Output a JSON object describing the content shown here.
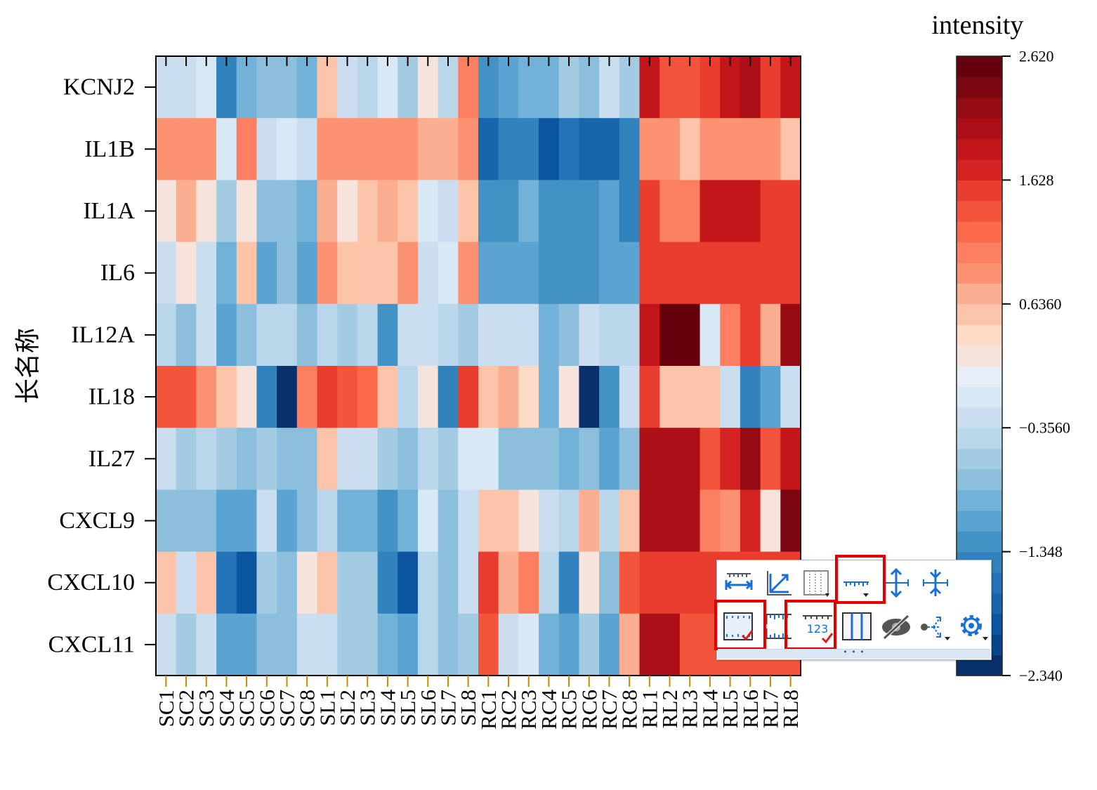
{
  "chart_data": {
    "type": "heatmap",
    "ylabel": "长名称",
    "rows": [
      "KCNJ2",
      "IL1B",
      "IL1A",
      "IL6",
      "IL12A",
      "IL18",
      "IL27",
      "CXCL9",
      "CXCL10",
      "CXCL11"
    ],
    "columns": [
      "SC1",
      "SC2",
      "SC3",
      "SC4",
      "SC5",
      "SC6",
      "SC7",
      "SC8",
      "SL1",
      "SL2",
      "SL3",
      "SL4",
      "SL5",
      "SL6",
      "SL7",
      "SL8",
      "RC1",
      "RC2",
      "RC3",
      "RC4",
      "RC5",
      "RC6",
      "RC7",
      "RC8",
      "RL1",
      "RL2",
      "RL3",
      "RL4",
      "RL5",
      "RL6",
      "RL7",
      "RL8"
    ],
    "values": [
      [
        -0.35,
        -0.25,
        -0.1,
        -1.45,
        -1.0,
        -0.7,
        -0.85,
        -0.95,
        0.6,
        -0.35,
        -0.5,
        -0.1,
        -0.6,
        0.2,
        -0.45,
        1.1,
        -1.3,
        -1.1,
        -1.0,
        -1.0,
        -0.6,
        -0.75,
        -0.35,
        -0.55,
        1.9,
        1.4,
        1.4,
        1.6,
        1.9,
        2.1,
        1.6,
        1.9
      ],
      [
        0.85,
        0.85,
        0.85,
        -0.1,
        1.05,
        -0.2,
        -0.1,
        -0.25,
        0.85,
        0.85,
        0.85,
        0.85,
        0.85,
        0.7,
        0.7,
        0.85,
        -1.75,
        -1.45,
        -1.35,
        -2.0,
        -1.6,
        -1.75,
        -1.75,
        -1.5,
        0.85,
        0.85,
        0.6,
        0.85,
        0.85,
        0.85,
        0.85,
        0.6
      ],
      [
        0.3,
        0.65,
        0.3,
        -0.55,
        0.3,
        -0.85,
        -0.85,
        -1.0,
        0.65,
        0.3,
        0.5,
        0.75,
        0.5,
        -0.1,
        -0.2,
        0.5,
        -1.2,
        -1.2,
        -1.0,
        -1.3,
        -1.3,
        -1.3,
        -1.1,
        -1.4,
        1.5,
        1.1,
        1.1,
        1.8,
        1.8,
        1.8,
        1.6,
        1.6
      ],
      [
        -0.25,
        0.2,
        -0.25,
        -1.0,
        0.5,
        -1.15,
        -0.7,
        -1.15,
        0.85,
        0.6,
        0.6,
        0.6,
        0.85,
        -0.2,
        -0.05,
        0.85,
        -1.05,
        -1.05,
        -1.05,
        -1.2,
        -1.3,
        -1.3,
        -1.15,
        -1.15,
        1.5,
        1.5,
        1.5,
        1.5,
        1.6,
        1.6,
        1.5,
        1.5
      ],
      [
        -0.5,
        -0.8,
        -0.25,
        -1.15,
        -0.7,
        -0.4,
        -0.5,
        -0.8,
        -0.5,
        -0.6,
        -0.5,
        -1.3,
        -0.25,
        -0.25,
        -0.45,
        -0.6,
        -0.25,
        -0.3,
        -0.2,
        -0.9,
        -0.8,
        -0.35,
        -0.5,
        -0.5,
        1.85,
        2.55,
        2.55,
        -0.15,
        1.1,
        1.55,
        0.7,
        2.2
      ],
      [
        1.35,
        1.35,
        0.9,
        0.5,
        0.3,
        -1.35,
        -2.3,
        1.0,
        1.55,
        1.35,
        1.2,
        0.6,
        -0.5,
        0.25,
        -1.4,
        1.55,
        0.55,
        0.75,
        0.35,
        -0.9,
        0.2,
        -2.25,
        -1.25,
        -0.2,
        1.55,
        0.5,
        0.5,
        0.6,
        -0.35,
        -1.35,
        -1.05,
        -0.35
      ],
      [
        -0.35,
        -0.55,
        -0.4,
        -0.65,
        -0.8,
        -0.6,
        -0.7,
        -0.7,
        0.55,
        -0.35,
        -0.25,
        -0.65,
        -0.8,
        -0.4,
        -0.65,
        -0.15,
        -0.15,
        -0.85,
        -0.85,
        -0.85,
        -1.0,
        -0.8,
        -1.15,
        -0.75,
        2.05,
        2.05,
        2.05,
        1.3,
        1.65,
        2.25,
        1.3,
        1.9
      ],
      [
        -0.75,
        -0.75,
        -0.75,
        -1.15,
        -1.15,
        -0.2,
        -1.15,
        -0.75,
        -0.4,
        -1.0,
        -1.0,
        -1.2,
        -1.0,
        -0.15,
        -0.7,
        -0.3,
        0.5,
        0.5,
        0.3,
        -0.2,
        -0.5,
        0.7,
        -0.5,
        0.5,
        2.05,
        2.05,
        2.05,
        1.05,
        0.85,
        1.75,
        0.25,
        2.4
      ],
      [
        0.55,
        -0.35,
        0.6,
        -1.55,
        -1.95,
        -0.6,
        -0.75,
        0.3,
        0.6,
        -0.65,
        -0.65,
        -1.4,
        -2.0,
        -0.5,
        -0.7,
        -0.25,
        1.6,
        0.8,
        1.0,
        -0.5,
        -1.35,
        0.2,
        -0.85,
        1.3,
        1.5,
        1.5,
        1.5,
        1.5,
        1.5,
        1.5,
        1.5,
        1.5
      ],
      [
        -0.35,
        -0.6,
        -0.35,
        -1.05,
        -1.05,
        -0.7,
        -0.8,
        -0.3,
        -0.2,
        -0.6,
        -0.6,
        -0.95,
        -1.05,
        -0.5,
        -0.7,
        -0.55,
        1.35,
        -0.3,
        -0.1,
        -0.95,
        -1.1,
        -0.55,
        -1.15,
        0.7,
        2.05,
        2.05,
        1.3,
        1.3,
        1.3,
        1.3,
        1.3,
        1.3
      ]
    ],
    "colorbar": {
      "title": "intensity",
      "min": -2.34,
      "max": 2.62,
      "ticks": [
        {
          "value": 2.62,
          "label": "2.620"
        },
        {
          "value": 1.628,
          "label": "1.628"
        },
        {
          "value": 0.636,
          "label": "0.6360"
        },
        {
          "value": -0.356,
          "label": "−0.3560"
        },
        {
          "value": -1.348,
          "label": "−1.348"
        },
        {
          "value": -2.34,
          "label": "−2.340"
        }
      ],
      "colors": [
        "#08306b",
        "#08458a",
        "#0b559f",
        "#1765ab",
        "#2373b6",
        "#3282be",
        "#4292c6",
        "#5ba3d0",
        "#73b2d8",
        "#8bbfdc",
        "#a3cce3",
        "#bad6eb",
        "#cadeef",
        "#d9e8f5",
        "#e6eef8",
        "#f5e3dc",
        "#fddbc7",
        "#fcc5a9",
        "#fcae91",
        "#fc9272",
        "#fb7f60",
        "#fb6a4a",
        "#f3553c",
        "#e83d2f",
        "#d42322",
        "#c2161b",
        "#ac1016",
        "#950b13",
        "#7b0510",
        "#67000d"
      ]
    },
    "grid": false
  },
  "toolbar": {
    "highlight_color": "#e00000",
    "buttons": [
      {
        "name": "rescale-x-icon",
        "highlighted": false
      },
      {
        "name": "axis-angle-icon",
        "highlighted": false
      },
      {
        "name": "grid-lines-icon",
        "highlighted": false
      },
      {
        "name": "tick-direction-icon",
        "highlighted": true
      },
      {
        "name": "expand-height-icon",
        "highlighted": false
      },
      {
        "name": "shrink-height-icon",
        "highlighted": false
      },
      {
        "name": "frame-border-icon",
        "highlighted": true
      },
      {
        "name": "ruler-ticks-icon",
        "highlighted": false
      },
      {
        "name": "tick-labels-icon",
        "highlighted": true
      },
      {
        "name": "column-border-icon",
        "highlighted": false
      },
      {
        "name": "hide-icon",
        "highlighted": false
      },
      {
        "name": "plot-type-icon",
        "highlighted": false
      },
      {
        "name": "settings-gear-icon",
        "highlighted": false
      }
    ],
    "more": "• • •"
  }
}
